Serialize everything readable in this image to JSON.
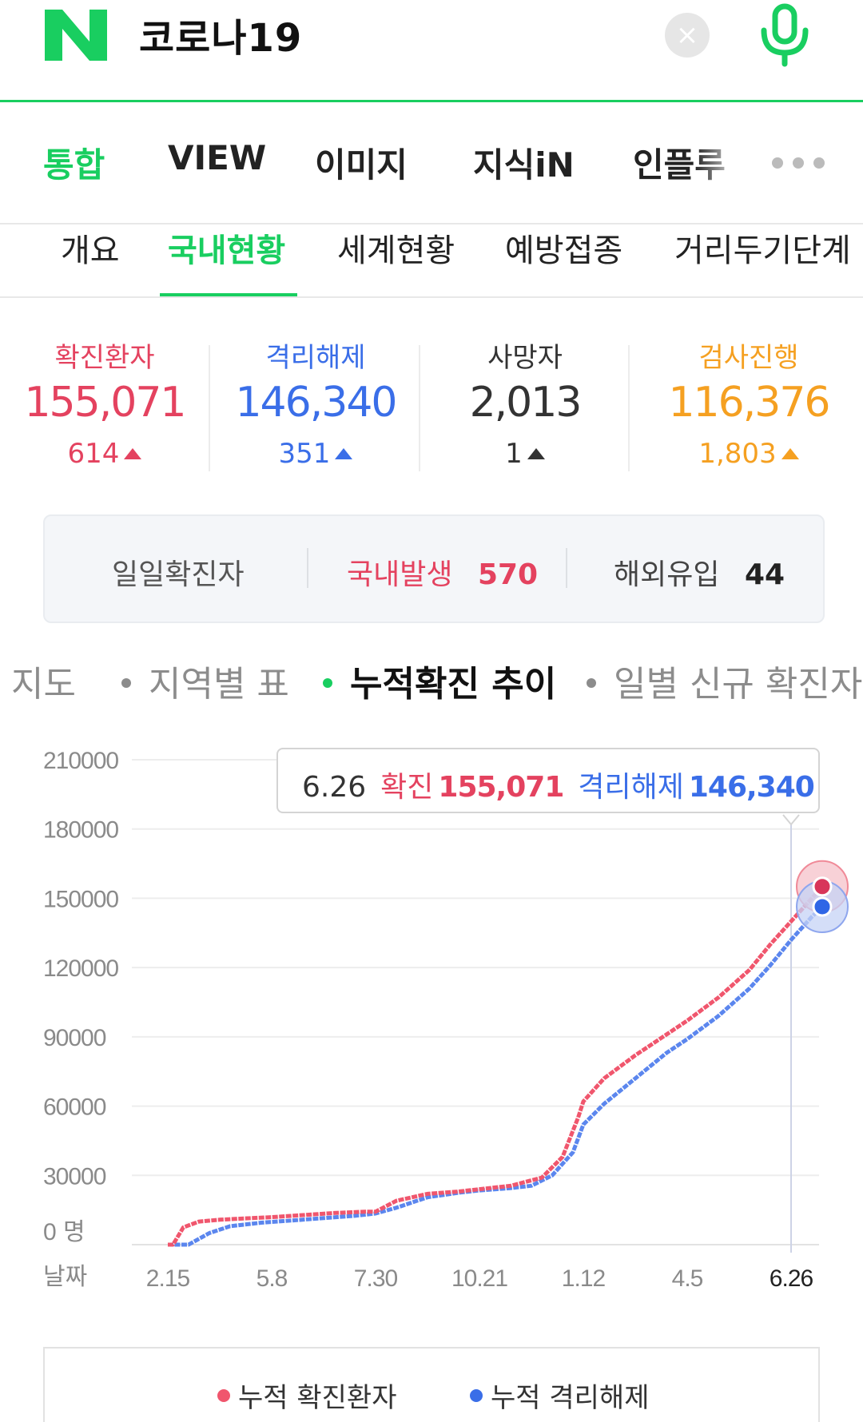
{
  "search": {
    "logo_letter": "N",
    "query": "코로나19",
    "clear_icon": "close-icon",
    "mic_icon": "microphone-icon",
    "brand_color": "#19ce60"
  },
  "main_tabs": [
    {
      "label": "통합",
      "active": true
    },
    {
      "label": "VIEW",
      "active": false
    },
    {
      "label": "이미지",
      "active": false
    },
    {
      "label": "지식iN",
      "active": false
    },
    {
      "label": "인플루",
      "active": false
    }
  ],
  "sub_tabs": [
    {
      "label": "개요",
      "active": false
    },
    {
      "label": "국내현황",
      "active": true
    },
    {
      "label": "세계현황",
      "active": false
    },
    {
      "label": "예방접종",
      "active": false
    },
    {
      "label": "거리두기단계",
      "active": false
    }
  ],
  "stats": [
    {
      "label": "확진환자",
      "value": "155,071",
      "delta": "614",
      "color": "#e4425f"
    },
    {
      "label": "격리해제",
      "value": "146,340",
      "delta": "351",
      "color": "#3a6ee8"
    },
    {
      "label": "사망자",
      "value": "2,013",
      "delta": "1",
      "color": "#333333"
    },
    {
      "label": "검사진행",
      "value": "116,376",
      "delta": "1,803",
      "color": "#f5a021"
    }
  ],
  "daily": {
    "label": "일일확진자",
    "domestic_label": "국내발생",
    "domestic_value": "570",
    "overseas_label": "해외유입",
    "overseas_value": "44"
  },
  "chart_tabs": [
    {
      "label": "지도",
      "active": false
    },
    {
      "label": "지역별 표",
      "active": false
    },
    {
      "label": "누적확진 추이",
      "active": true
    },
    {
      "label": "일별 신규 확진자",
      "active": false
    }
  ],
  "tooltip": {
    "date": "6.26",
    "confirmed_label": "확진",
    "confirmed_value": "155,071",
    "released_label": "격리해제",
    "released_value": "146,340"
  },
  "legend": {
    "confirmed": "누적 확진환자",
    "released": "누적 격리해제"
  },
  "chart_data": {
    "type": "line",
    "x_unit_label": "날짜",
    "y_unit_label": "0 명",
    "y_ticks": [
      "210000",
      "180000",
      "150000",
      "120000",
      "90000",
      "60000",
      "30000"
    ],
    "x_ticks": [
      "2.15",
      "5.8",
      "7.30",
      "10.21",
      "1.12",
      "4.5",
      "6.26"
    ],
    "ylim": [
      0,
      210000
    ],
    "grid": true,
    "legend_position": "bottom",
    "series": [
      {
        "name": "누적 확진환자",
        "color": "#f0566d",
        "points": [
          [
            0,
            0
          ],
          [
            0.05,
            0
          ],
          [
            0.15,
            7500
          ],
          [
            0.3,
            10000
          ],
          [
            0.5,
            10800
          ],
          [
            0.8,
            11500
          ],
          [
            1.0,
            11900
          ],
          [
            1.3,
            12800
          ],
          [
            1.6,
            13700
          ],
          [
            1.9,
            14300
          ],
          [
            2.0,
            14300
          ],
          [
            2.2,
            19000
          ],
          [
            2.5,
            22000
          ],
          [
            2.8,
            23000
          ],
          [
            3.0,
            24000
          ],
          [
            3.3,
            25500
          ],
          [
            3.6,
            29000
          ],
          [
            3.8,
            38000
          ],
          [
            3.95,
            55000
          ],
          [
            4.0,
            62000
          ],
          [
            4.2,
            72000
          ],
          [
            4.5,
            82000
          ],
          [
            4.8,
            91000
          ],
          [
            5.0,
            97000
          ],
          [
            5.3,
            107000
          ],
          [
            5.6,
            119000
          ],
          [
            5.8,
            130000
          ],
          [
            6.0,
            140000
          ],
          [
            6.2,
            150000
          ],
          [
            6.3,
            155071
          ]
        ]
      },
      {
        "name": "누적 격리해제",
        "color": "#5b86ee",
        "points": [
          [
            0,
            0
          ],
          [
            0.2,
            0
          ],
          [
            0.4,
            5000
          ],
          [
            0.6,
            8000
          ],
          [
            0.9,
            9500
          ],
          [
            1.2,
            10500
          ],
          [
            1.5,
            11500
          ],
          [
            1.8,
            12500
          ],
          [
            2.0,
            13500
          ],
          [
            2.2,
            16000
          ],
          [
            2.5,
            20500
          ],
          [
            2.8,
            22500
          ],
          [
            3.0,
            23500
          ],
          [
            3.3,
            24500
          ],
          [
            3.5,
            25500
          ],
          [
            3.7,
            30000
          ],
          [
            3.9,
            40000
          ],
          [
            4.0,
            52000
          ],
          [
            4.2,
            61000
          ],
          [
            4.5,
            72000
          ],
          [
            4.8,
            83000
          ],
          [
            5.0,
            89000
          ],
          [
            5.3,
            99000
          ],
          [
            5.6,
            111000
          ],
          [
            5.8,
            121000
          ],
          [
            6.0,
            132000
          ],
          [
            6.2,
            142000
          ],
          [
            6.3,
            146340
          ]
        ]
      }
    ]
  }
}
